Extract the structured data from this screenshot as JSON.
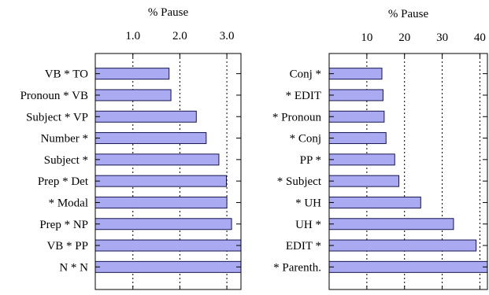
{
  "chart_data": [
    {
      "type": "bar",
      "orientation": "horizontal",
      "xlabel": "% Pause",
      "xlim": [
        0.2,
        3.3
      ],
      "xticks": [
        1.0,
        2.0,
        3.0
      ],
      "xtick_labels": [
        "1.0",
        "2.0",
        "3.0"
      ],
      "grid": "vertical dotted",
      "categories": [
        "VB * TO",
        "Pronoun * VB",
        "Subject * VP",
        "Number *",
        "Subject *",
        "Prep * Det",
        "* Modal",
        "Prep * NP",
        "VB * PP",
        "N * N"
      ],
      "values": [
        1.77,
        1.81,
        2.35,
        2.56,
        2.83,
        2.99,
        3.0,
        3.1,
        3.33,
        3.33
      ]
    },
    {
      "type": "bar",
      "orientation": "horizontal",
      "xlabel": "% Pause",
      "xlim": [
        0,
        42
      ],
      "xticks": [
        10,
        20,
        30,
        40
      ],
      "xtick_labels": [
        "10",
        "20",
        "30",
        "40"
      ],
      "grid": "vertical dotted",
      "categories": [
        "Conj *",
        "* EDIT",
        "* Pronoun",
        "* Conj",
        "PP *",
        "* Subject",
        "* UH",
        "UH *",
        "EDIT *",
        "* Parenth."
      ],
      "values": [
        14.0,
        14.3,
        14.6,
        15.1,
        17.4,
        18.5,
        24.3,
        33.0,
        39.0,
        42.0
      ]
    }
  ],
  "colors": {
    "bar_fill": "#aaaaf2",
    "bar_stroke": "#141450",
    "frame": "#000000"
  }
}
